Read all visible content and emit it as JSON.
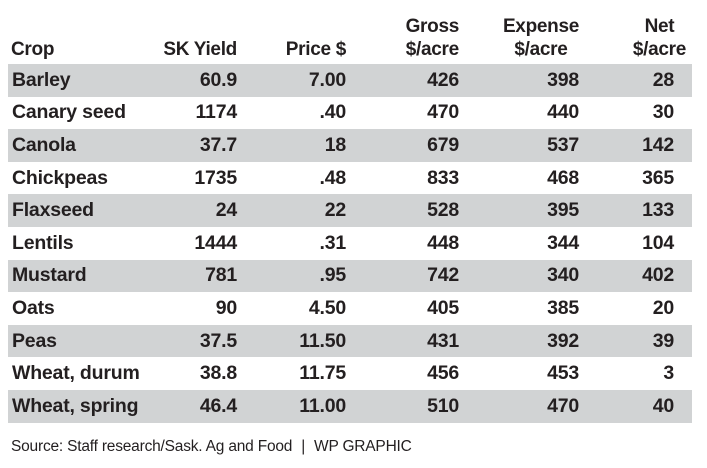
{
  "chart_data": {
    "type": "table",
    "columns": [
      {
        "key": "crop",
        "label_lines": [
          "Crop"
        ]
      },
      {
        "key": "yield",
        "label_lines": [
          "SK Yield"
        ]
      },
      {
        "key": "price",
        "label_lines": [
          "Price $"
        ]
      },
      {
        "key": "gross",
        "label_lines": [
          "Gross",
          "$/acre"
        ]
      },
      {
        "key": "expense",
        "label_lines": [
          "Expense",
          "$/acre"
        ]
      },
      {
        "key": "net",
        "label_lines": [
          "Net",
          "$/acre"
        ]
      }
    ],
    "rows": [
      {
        "crop": "Barley",
        "yield": "60.9",
        "price": "7.00",
        "gross": "426",
        "expense": "398",
        "net": "28"
      },
      {
        "crop": "Canary seed",
        "yield": "1174",
        "price": ".40",
        "gross": "470",
        "expense": "440",
        "net": "30"
      },
      {
        "crop": "Canola",
        "yield": "37.7",
        "price": "18",
        "gross": "679",
        "expense": "537",
        "net": "142"
      },
      {
        "crop": "Chickpeas",
        "yield": "1735",
        "price": ".48",
        "gross": "833",
        "expense": "468",
        "net": "365"
      },
      {
        "crop": "Flaxseed",
        "yield": "24",
        "price": "22",
        "gross": "528",
        "expense": "395",
        "net": "133"
      },
      {
        "crop": "Lentils",
        "yield": "1444",
        "price": ".31",
        "gross": "448",
        "expense": "344",
        "net": "104"
      },
      {
        "crop": "Mustard",
        "yield": "781",
        "price": ".95",
        "gross": "742",
        "expense": "340",
        "net": "402"
      },
      {
        "crop": "Oats",
        "yield": "90",
        "price": "4.50",
        "gross": "405",
        "expense": "385",
        "net": "20"
      },
      {
        "crop": "Peas",
        "yield": "37.5",
        "price": "11.50",
        "gross": "431",
        "expense": "392",
        "net": "39"
      },
      {
        "crop": "Wheat, durum",
        "yield": "38.8",
        "price": "11.75",
        "gross": "456",
        "expense": "453",
        "net": "3"
      },
      {
        "crop": "Wheat, spring",
        "yield": "46.4",
        "price": "11.00",
        "gross": "510",
        "expense": "470",
        "net": "40"
      }
    ],
    "row_shading": "alternating, first row shaded",
    "shade_color": "#d1d3d4"
  },
  "footer": {
    "source": "Source: Staff research/Sask. Ag and Food",
    "separator": "|",
    "credit": "WP GRAPHIC"
  }
}
